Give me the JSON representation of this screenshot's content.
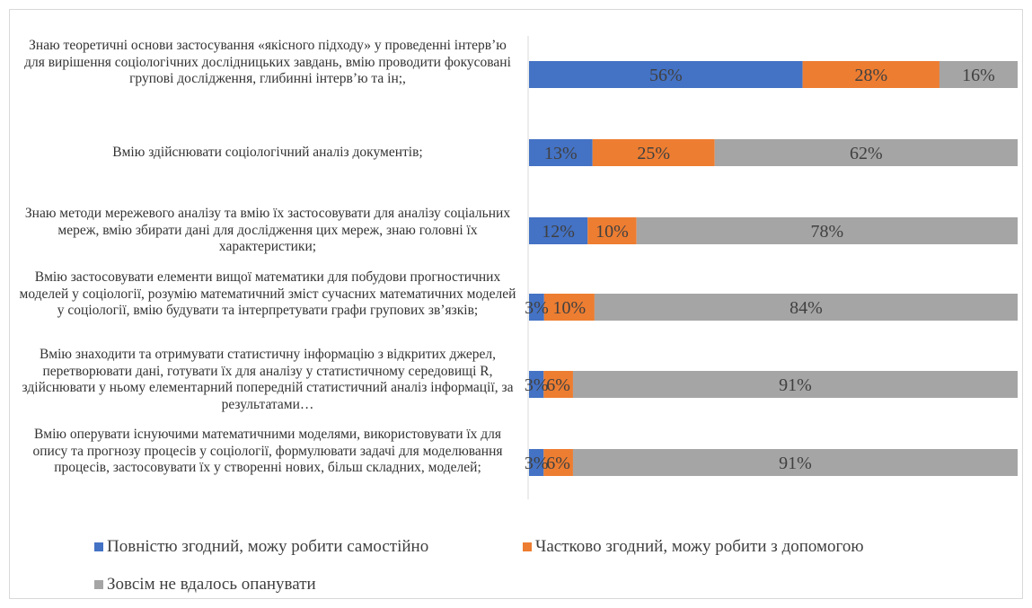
{
  "chart_data": {
    "type": "bar",
    "orientation": "horizontal",
    "stacked": "percent",
    "title": "",
    "categories": [
      "Знаю теоретичні основи застосування «якісного підходу» у проведенні інтерв’ю для вирішення соціологічних дослідницьких завдань, вмію проводити фокусовані групові дослідження, глибинні інтерв’ю та ін;,",
      "Вмію здійснювати соціологічний аналіз документів;",
      "Знаю методи мережевого аналізу та вмію їх застосовувати для аналізу соціальних мереж, вмію збирати дані для дослідження цих мереж, знаю головні їх характеристики;",
      "Вмію застосовувати елементи вищої математики для побудови прогностичних моделей у соціології, розумію математичний зміст сучасних математичних моделей у соціології, вмію будувати та інтерпретувати графи групових зв’язків;",
      "Вмію знаходити та отримувати статистичну інформацію з відкритих джерел, перетворювати дані, готувати їх для аналізу у статистичному середовищі R, здійснювати у ньому елементарний попередній статистичний аналіз інформації, за результатами…",
      "Вмію оперувати існуючими математичними моделями, використовувати їх для опису та прогнозу процесів у соціології, формулювати задачі для моделювання процесів, застосовувати їх у створенні нових, більш складних, моделей;"
    ],
    "series": [
      {
        "name": "Повністю згодний, можу робити самостійно",
        "color": "#4472C4",
        "values": [
          56,
          13,
          12,
          3,
          3,
          3
        ]
      },
      {
        "name": "Частково згодний, можу робити з допомогою",
        "color": "#ED7D31",
        "values": [
          28,
          25,
          10,
          10,
          6,
          6
        ]
      },
      {
        "name": "Зовсім не вдалось опанувати",
        "color": "#A5A5A5",
        "values": [
          16,
          62,
          78,
          84,
          91,
          91
        ]
      }
    ],
    "data_labels": [
      [
        "56%",
        "28%",
        "16%"
      ],
      [
        "13%",
        "25%",
        "62%"
      ],
      [
        "12%",
        "10%",
        "78%"
      ],
      [
        "3%",
        "10%",
        "84%"
      ],
      [
        "3%",
        "6%",
        "91%"
      ],
      [
        "3%",
        "6%",
        "91%"
      ]
    ],
    "xlim": [
      0,
      100
    ],
    "legend_position": "bottom",
    "grid": false
  }
}
